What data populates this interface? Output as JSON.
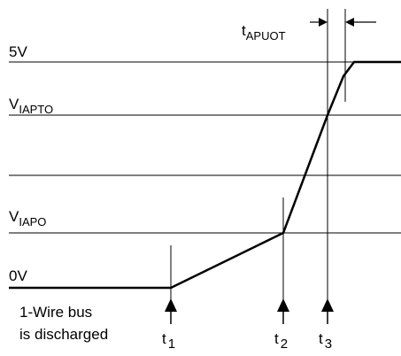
{
  "levels": {
    "v5": "5V",
    "viapto_main": "V",
    "viapto_sub": "IAPTO",
    "viapo_main": "V",
    "viapo_sub": "IAPO",
    "v0": "0V"
  },
  "timing": {
    "tapuot_main": "t",
    "tapuot_sub": "APUOT"
  },
  "note": {
    "line1": "1-Wire bus",
    "line2": "is discharged"
  },
  "times": {
    "t1_main": "t",
    "t1_sub": "1",
    "t2_main": "t",
    "t2_sub": "2",
    "t3_main": "t",
    "t3_sub": "3"
  },
  "colors": {
    "line": "#000000",
    "background": "#ffffff"
  }
}
